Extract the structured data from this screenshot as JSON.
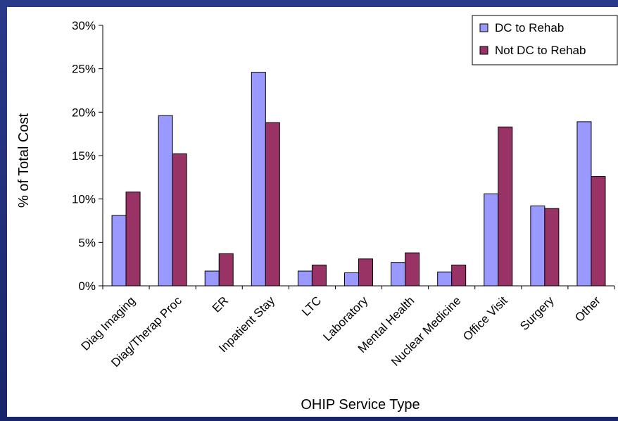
{
  "chart_data": {
    "type": "bar",
    "title": "",
    "xlabel": "OHIP Service Type",
    "ylabel": "% of Total Cost",
    "ylim": [
      0,
      30
    ],
    "ytick_values": [
      0,
      5,
      10,
      15,
      20,
      25,
      30
    ],
    "ytick_labels": [
      "0%",
      "5%",
      "10%",
      "15%",
      "20%",
      "25%",
      "30%"
    ],
    "grid": false,
    "legend_position": "top-right",
    "categories": [
      "Diag Imaging",
      "Diag/Therap Proc",
      "ER",
      "Inpatient Stay",
      "LTC",
      "Laboratory",
      "Mental Health",
      "Nuclear Medicine",
      "Office Visit",
      "Surgery",
      "Other"
    ],
    "series": [
      {
        "name": "DC to Rehab",
        "color": "#9999ff",
        "values": [
          8.1,
          19.6,
          1.7,
          24.6,
          1.7,
          1.5,
          2.7,
          1.6,
          10.6,
          9.2,
          18.9
        ]
      },
      {
        "name": "Not DC to Rehab",
        "color": "#993366",
        "values": [
          10.8,
          15.2,
          3.7,
          18.8,
          2.4,
          3.1,
          3.8,
          2.4,
          18.3,
          8.9,
          12.6
        ]
      }
    ]
  }
}
